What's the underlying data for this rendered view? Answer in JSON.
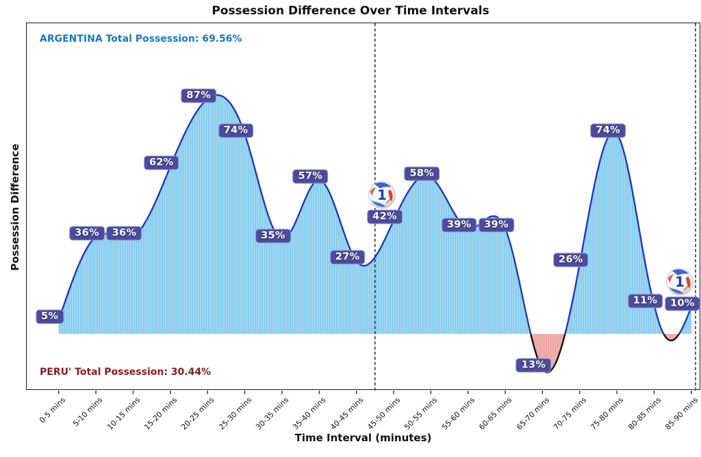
{
  "annotations": {
    "home": "ARGENTINA Total Possession: 69.56%",
    "away": "PERU' Total Possession: 30.44%"
  },
  "chart_data": {
    "type": "area",
    "title": "Possession Difference Over Time Intervals",
    "xlabel": "Time Interval (minutes)",
    "ylabel": "Possession Difference",
    "x": [
      "0-5 mins",
      "5-10 mins",
      "10-15 mins",
      "15-20 mins",
      "20-25 mins",
      "25-30 mins",
      "30-35 mins",
      "35-40 mins",
      "40-45 mins",
      "45-50 mins",
      "50-55 mins",
      "55-60 mins",
      "60-65 mins",
      "65-70 mins",
      "70-75 mins",
      "75-80 mins",
      "80-85 mins",
      "85-90 mins"
    ],
    "values": [
      5,
      36,
      36,
      62,
      87,
      74,
      35,
      57,
      27,
      42,
      58,
      39,
      39,
      -13,
      26,
      74,
      11,
      10
    ],
    "point_labels": [
      "5%",
      "36%",
      "36%",
      "62%",
      "87%",
      "74%",
      "35%",
      "57%",
      "27%",
      "42%",
      "58%",
      "39%",
      "39%",
      "13%",
      "26%",
      "74%",
      "11%",
      "10%"
    ],
    "ylim": [
      -21,
      115
    ],
    "baseline": 0,
    "grid": false,
    "legend": "none",
    "smoothing": "cubic-spline",
    "fill_hatch": "vertical-stripes",
    "curve_dips_below_zero": [
      {
        "between_x": [
          "80-85 mins",
          "85-90 mins"
        ],
        "min_value": -2.5
      }
    ],
    "reference_lines": [
      {
        "name": "half-time-line",
        "style": "dashed",
        "between_x": [
          "40-45 mins",
          "45-50 mins"
        ]
      },
      {
        "name": "full-time-line",
        "style": "dashed",
        "position": "right-edge"
      }
    ],
    "goal_markers": [
      {
        "x": "45-50 mins",
        "label": "1",
        "icon": "soccer-ball"
      },
      {
        "x": "85-90 mins",
        "label": "1",
        "icon": "soccer-ball"
      }
    ],
    "colors": {
      "line_positive": "#2038b8",
      "line_negative": "#111111",
      "area_positive_base": "#a6d9f2",
      "area_positive_stripe": "#7fc9ec",
      "area_negative_base": "#f5b9b6",
      "area_negative_stripe": "#eb9c98",
      "label_bg": "#4c4c9d",
      "label_border": "#9a9ad6",
      "label_text": "#ffffff",
      "dashed_line": "#3a3a3a",
      "home_text": "#1778c8",
      "away_text": "#8b1a1a",
      "axis": "#1c1c1c",
      "ball_number": "#1d3e9e",
      "ball_red": "#d93025",
      "ball_blue": "#2b59c3"
    }
  }
}
